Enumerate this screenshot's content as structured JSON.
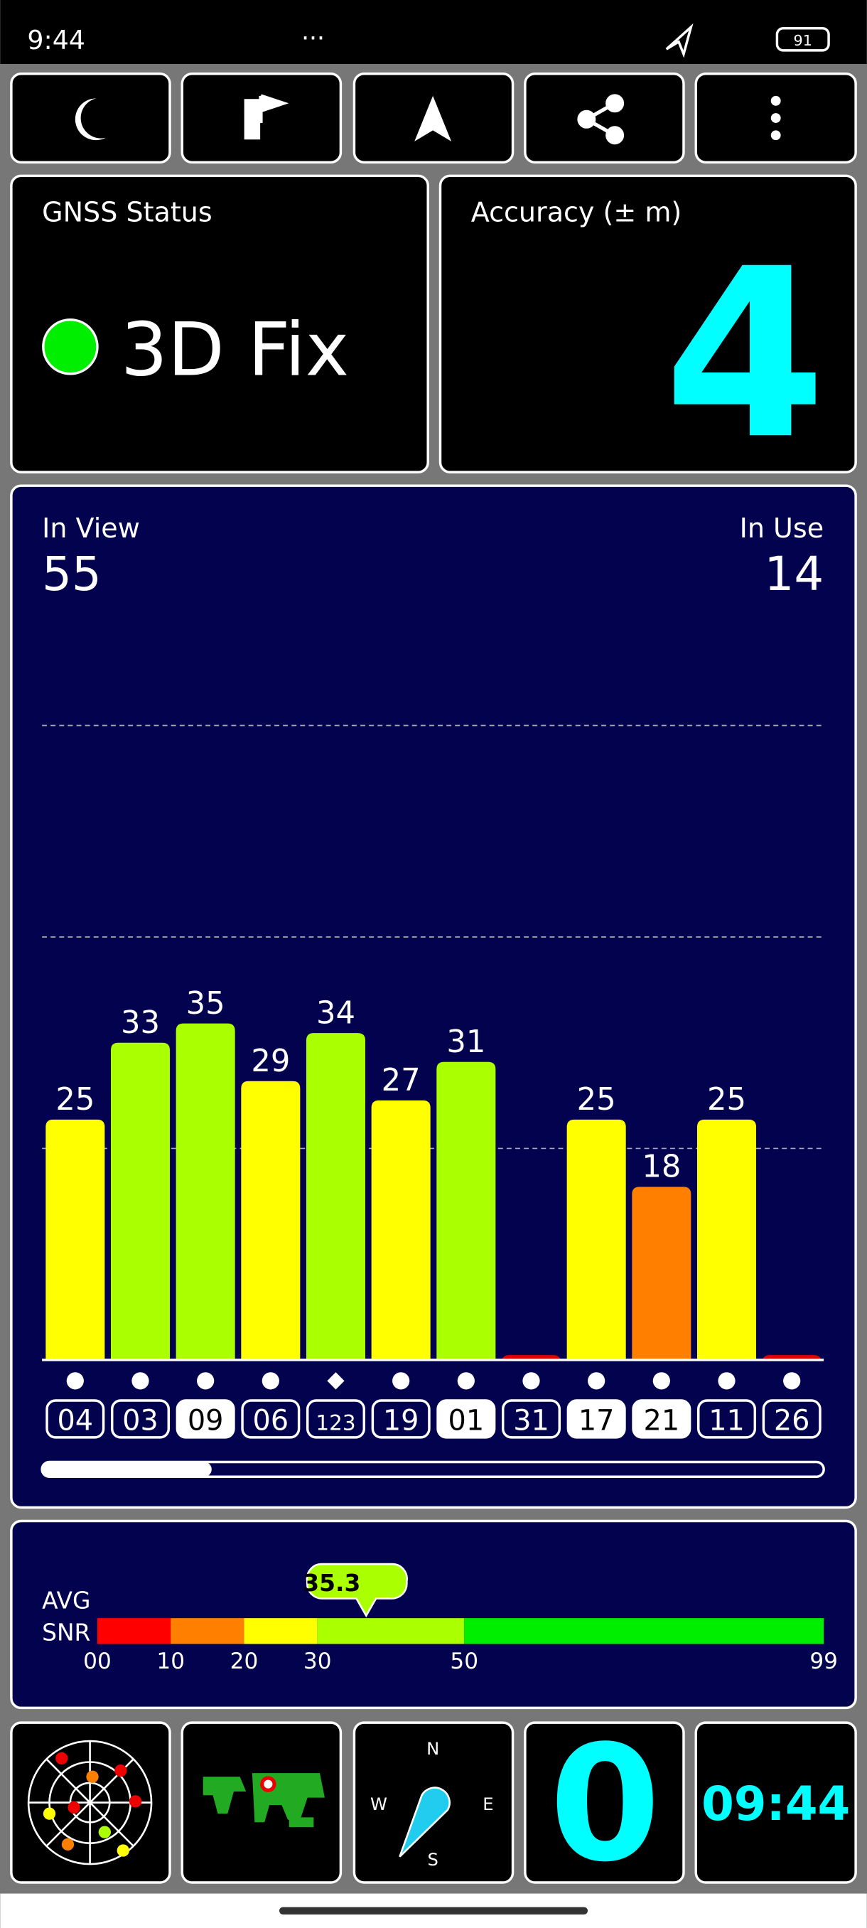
{
  "status_bar": {
    "time": "9:44",
    "battery": "91"
  },
  "gnss_status": {
    "label": "GNSS Status",
    "value": "3D Fix"
  },
  "accuracy": {
    "label": "Accuracy (± m)",
    "value": 4
  },
  "sky": {
    "in_view_label": "In View",
    "in_view": 55,
    "in_use_label": "In Use",
    "in_use": 14,
    "ylim": [
      0,
      88
    ],
    "grid": [
      22,
      44,
      66
    ],
    "satellites": [
      {
        "id": "04",
        "snr": 25,
        "color": "#ffff00",
        "used": false,
        "marker": "circle"
      },
      {
        "id": "03",
        "snr": 33,
        "color": "#aaff00",
        "used": false,
        "marker": "circle"
      },
      {
        "id": "09",
        "snr": 35,
        "color": "#aaff00",
        "used": true,
        "marker": "circle"
      },
      {
        "id": "06",
        "snr": 29,
        "color": "#ffff00",
        "used": false,
        "marker": "circle"
      },
      {
        "id": "123",
        "snr": 34,
        "color": "#aaff00",
        "used": false,
        "marker": "diamond"
      },
      {
        "id": "19",
        "snr": 27,
        "color": "#ffff00",
        "used": false,
        "marker": "circle"
      },
      {
        "id": "01",
        "snr": 31,
        "color": "#aaff00",
        "used": true,
        "marker": "circle"
      },
      {
        "id": "31",
        "snr": 0.5,
        "color": "#e00000",
        "used": false,
        "marker": "circle",
        "label": false
      },
      {
        "id": "17",
        "snr": 25,
        "color": "#ffff00",
        "used": true,
        "marker": "circle"
      },
      {
        "id": "21",
        "snr": 18,
        "color": "#ff8000",
        "used": true,
        "marker": "circle"
      },
      {
        "id": "11",
        "snr": 25,
        "color": "#ffff00",
        "used": false,
        "marker": "circle"
      },
      {
        "id": "26",
        "snr": 0.5,
        "color": "#e00000",
        "used": false,
        "marker": "circle",
        "label": false
      }
    ]
  },
  "avg_snr": {
    "label_top": "AVG",
    "label_bottom": "SNR",
    "value": 35.3,
    "xlim": [
      0,
      99
    ],
    "ticks": [
      {
        "value": 0,
        "label": "00"
      },
      10,
      20,
      30,
      50,
      99
    ],
    "bands": [
      {
        "from": 0,
        "to": 10,
        "color": "#ff0000"
      },
      {
        "from": 10,
        "to": 20,
        "color": "#ff8000"
      },
      {
        "from": 20,
        "to": 30,
        "color": "#ffff00"
      },
      {
        "from": 30,
        "to": 50,
        "color": "#aaff00"
      },
      {
        "from": 50,
        "to": 99,
        "color": "#00ee00"
      }
    ]
  },
  "bottom": {
    "compass": {
      "n": "N",
      "e": "E",
      "s": "S",
      "w": "W"
    },
    "speed": 0,
    "clock": "09:44"
  }
}
